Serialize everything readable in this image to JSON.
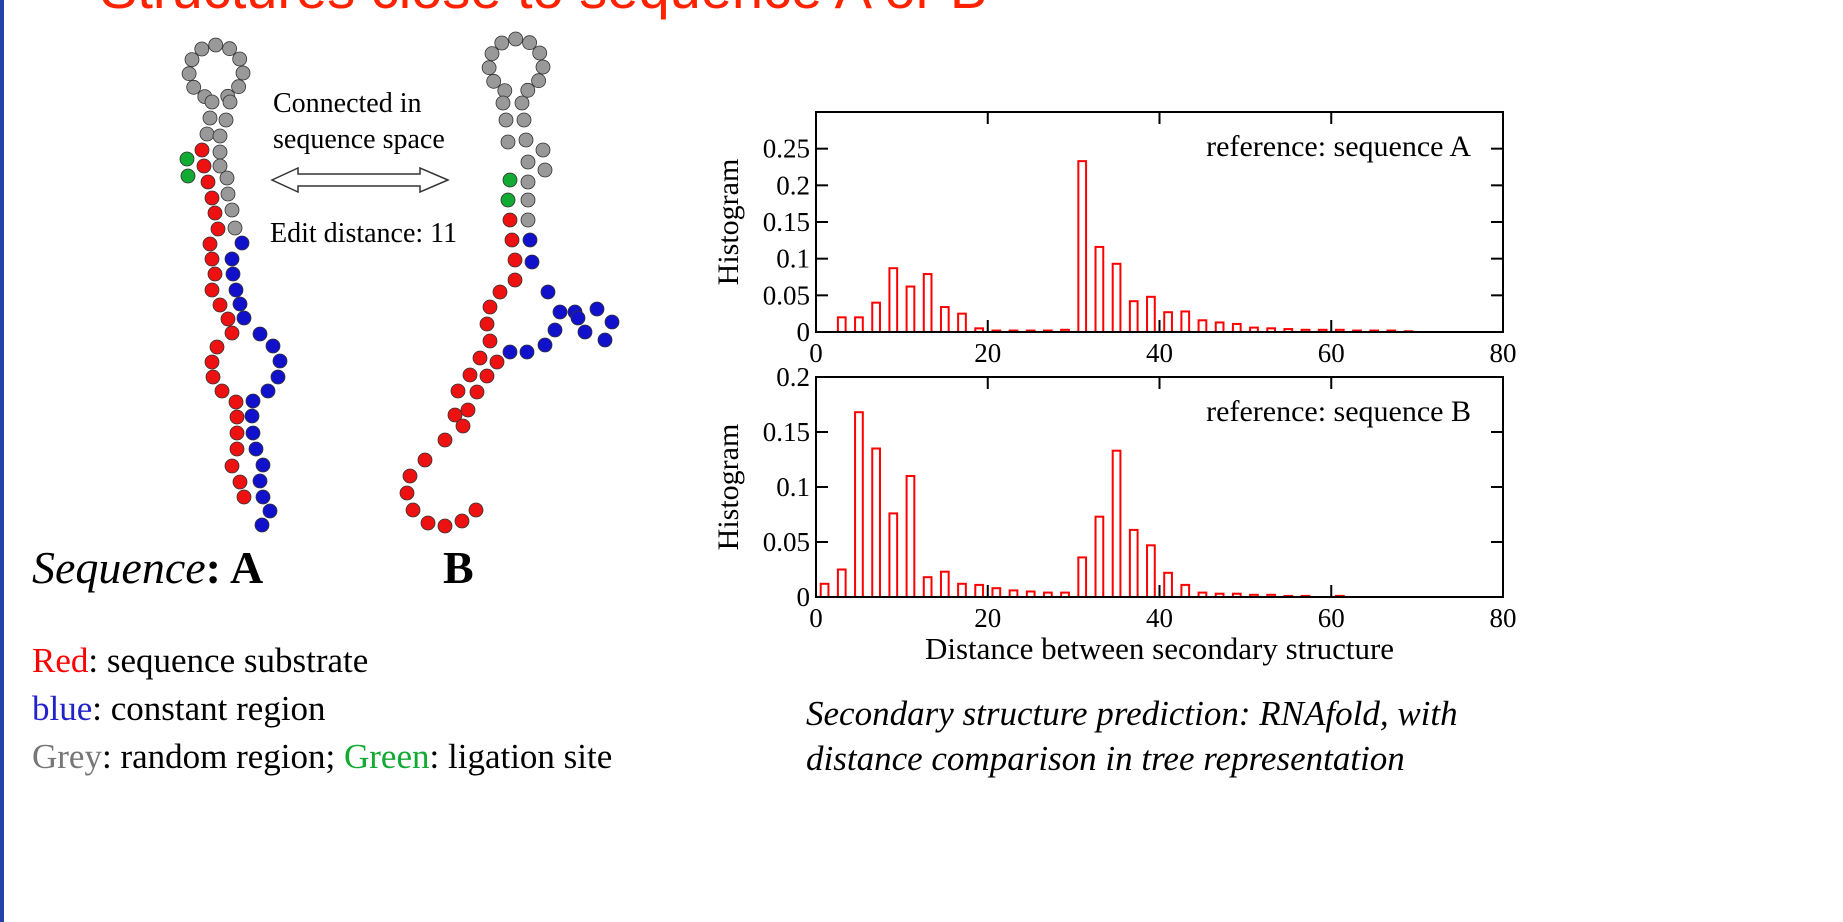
{
  "title": "Structures close to sequence A or B",
  "connection": {
    "line1": "Connected in",
    "line2": "sequence space",
    "distance": "Edit distance: 11"
  },
  "sequence_label": {
    "word": "Sequence",
    "rest": ": A",
    "b": "B"
  },
  "legend": [
    [
      {
        "key": "Red",
        "text": ": sequence substrate",
        "color": "#ff0000"
      }
    ],
    [
      {
        "key": "blue",
        "text": ": constant region",
        "color": "#2222cc"
      }
    ],
    [
      {
        "key": "Grey",
        "text": ": random region; ",
        "color": "#777777"
      },
      {
        "key": "Green",
        "text": ": ligation site",
        "color": "#11aa33"
      }
    ]
  ],
  "caption": [
    "Secondary structure prediction: RNAfold, with",
    "distance comparison in tree representation"
  ],
  "chart_data": [
    {
      "type": "bar",
      "ylabel": "Histogram",
      "annotation": "reference: sequence A",
      "color": "#ff0000",
      "x": [
        1,
        3,
        5,
        7,
        9,
        11,
        13,
        15,
        17,
        19,
        21,
        23,
        25,
        27,
        29,
        31,
        33,
        35,
        37,
        39,
        41,
        43,
        45,
        47,
        49,
        51,
        53,
        55,
        57,
        59,
        61,
        63,
        65,
        67,
        69
      ],
      "values": [
        0,
        0.02,
        0.02,
        0.04,
        0.087,
        0.062,
        0.079,
        0.034,
        0.025,
        0.005,
        0.002,
        0.002,
        0.002,
        0.002,
        0.003,
        0.233,
        0.116,
        0.093,
        0.042,
        0.048,
        0.027,
        0.028,
        0.016,
        0.013,
        0.011,
        0.006,
        0.005,
        0.004,
        0.003,
        0.003,
        0.003,
        0.002,
        0.002,
        0.002,
        0.001
      ],
      "xlim": [
        0,
        80
      ],
      "xticks": [
        0,
        20,
        40,
        60,
        80
      ],
      "ylim": [
        0,
        0.3
      ],
      "yticks": [
        0,
        0.05,
        0.1,
        0.15,
        0.2,
        0.25
      ]
    },
    {
      "type": "bar",
      "ylabel": "Histogram",
      "xlabel": "Distance between secondary structure",
      "annotation": "reference: sequence B",
      "color": "#ff0000",
      "x": [
        1,
        3,
        5,
        7,
        9,
        11,
        13,
        15,
        17,
        19,
        21,
        23,
        25,
        27,
        29,
        31,
        33,
        35,
        37,
        39,
        41,
        43,
        45,
        47,
        49,
        51,
        53,
        55,
        57,
        59,
        61
      ],
      "values": [
        0.012,
        0.025,
        0.168,
        0.135,
        0.076,
        0.11,
        0.018,
        0.023,
        0.012,
        0.011,
        0.008,
        0.006,
        0.005,
        0.004,
        0.004,
        0.036,
        0.073,
        0.133,
        0.061,
        0.047,
        0.022,
        0.011,
        0.004,
        0.003,
        0.003,
        0.002,
        0.002,
        0.001,
        0.001,
        0,
        0.001
      ],
      "xlim": [
        0,
        80
      ],
      "xticks": [
        0,
        20,
        40,
        60,
        80
      ],
      "ylim": [
        0,
        0.2
      ],
      "yticks": [
        0,
        0.05,
        0.1,
        0.15,
        0.2
      ]
    }
  ]
}
